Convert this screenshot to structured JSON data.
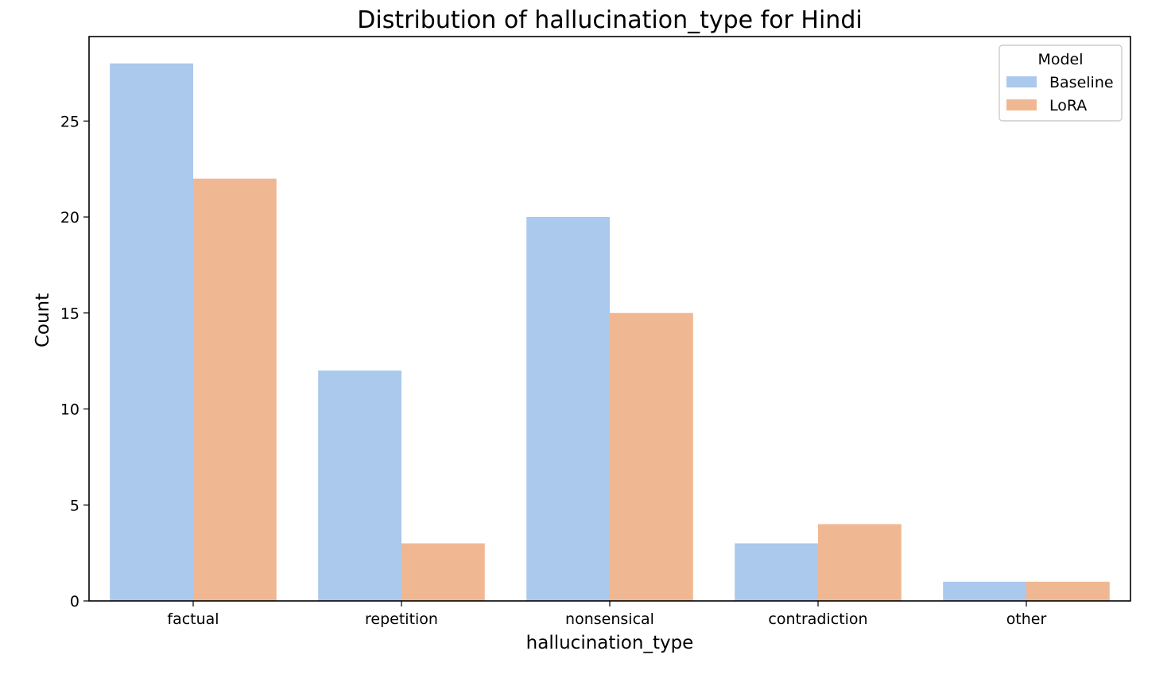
{
  "chart_data": {
    "type": "bar",
    "title": "Distribution of hallucination_type for Hindi",
    "xlabel": "hallucination_type",
    "ylabel": "Count",
    "categories": [
      "factual",
      "repetition",
      "nonsensical",
      "contradiction",
      "other"
    ],
    "series": [
      {
        "name": "Baseline",
        "values": [
          28,
          12,
          20,
          3,
          1
        ],
        "color": "#abc8ed"
      },
      {
        "name": "LoRA",
        "values": [
          22,
          3,
          15,
          4,
          1
        ],
        "color": "#f0b892"
      }
    ],
    "ylim": [
      0,
      29.4
    ],
    "yticks": [
      0,
      5,
      10,
      15,
      20,
      25
    ],
    "legend": {
      "title": "Model",
      "placement": "top-right"
    },
    "grid": false
  }
}
